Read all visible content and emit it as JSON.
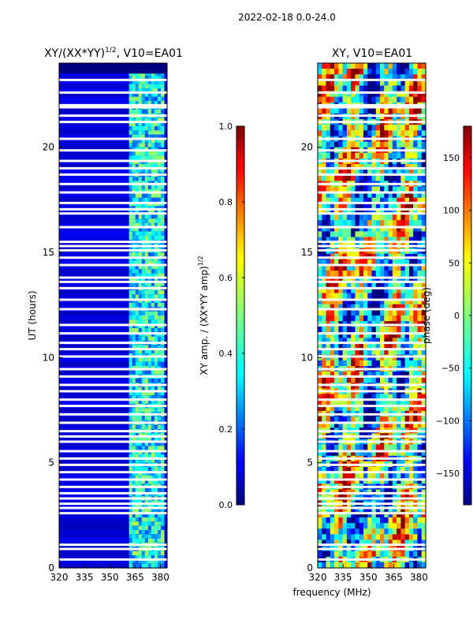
{
  "suptitle": "2022-02-18 0.0-24.0",
  "chart_data": [
    {
      "type": "heatmap",
      "title": "XY/(XX*YY)",
      "title_exponent": "1/2",
      "title_suffix": ", V10=EA01",
      "xlabel": "",
      "ylabel": "UT (hours)",
      "xlim": [
        320,
        384
      ],
      "ylim": [
        0,
        24
      ],
      "xticks": [
        320,
        335,
        350,
        365,
        380
      ],
      "yticks": [
        0,
        5,
        10,
        15,
        20
      ],
      "colorbar": {
        "label": "XY amp. / (XX*YY amp)",
        "label_exponent": "1/2",
        "range": [
          0.0,
          1.0
        ],
        "ticks": [
          "0.0",
          "0.2",
          "0.4",
          "0.6",
          "0.8",
          "1.0"
        ]
      },
      "colormap": [
        "#00007f",
        "#0000ff",
        "#007fff",
        "#00ffff",
        "#7fff7f",
        "#ffff00",
        "#ff7f00",
        "#ff0000",
        "#7f0000"
      ]
    },
    {
      "type": "heatmap",
      "title": "XY, V10=EA01",
      "xlabel": "frequency (MHz)",
      "ylabel": "",
      "xlim": [
        320,
        384
      ],
      "ylim": [
        0,
        24
      ],
      "xticks": [
        320,
        335,
        350,
        365,
        380
      ],
      "yticks": [
        0,
        5,
        10,
        15,
        20
      ],
      "colorbar": {
        "label": "phase (deg)",
        "range": [
          -180,
          180
        ],
        "ticks": [
          "−150",
          "−100",
          "−50",
          "0",
          "50",
          "100",
          "150"
        ]
      },
      "colormap": [
        "#00007f",
        "#0000ff",
        "#007fff",
        "#00ffff",
        "#7fff7f",
        "#ffff00",
        "#ff7f00",
        "#ff0000",
        "#7f0000"
      ]
    }
  ]
}
